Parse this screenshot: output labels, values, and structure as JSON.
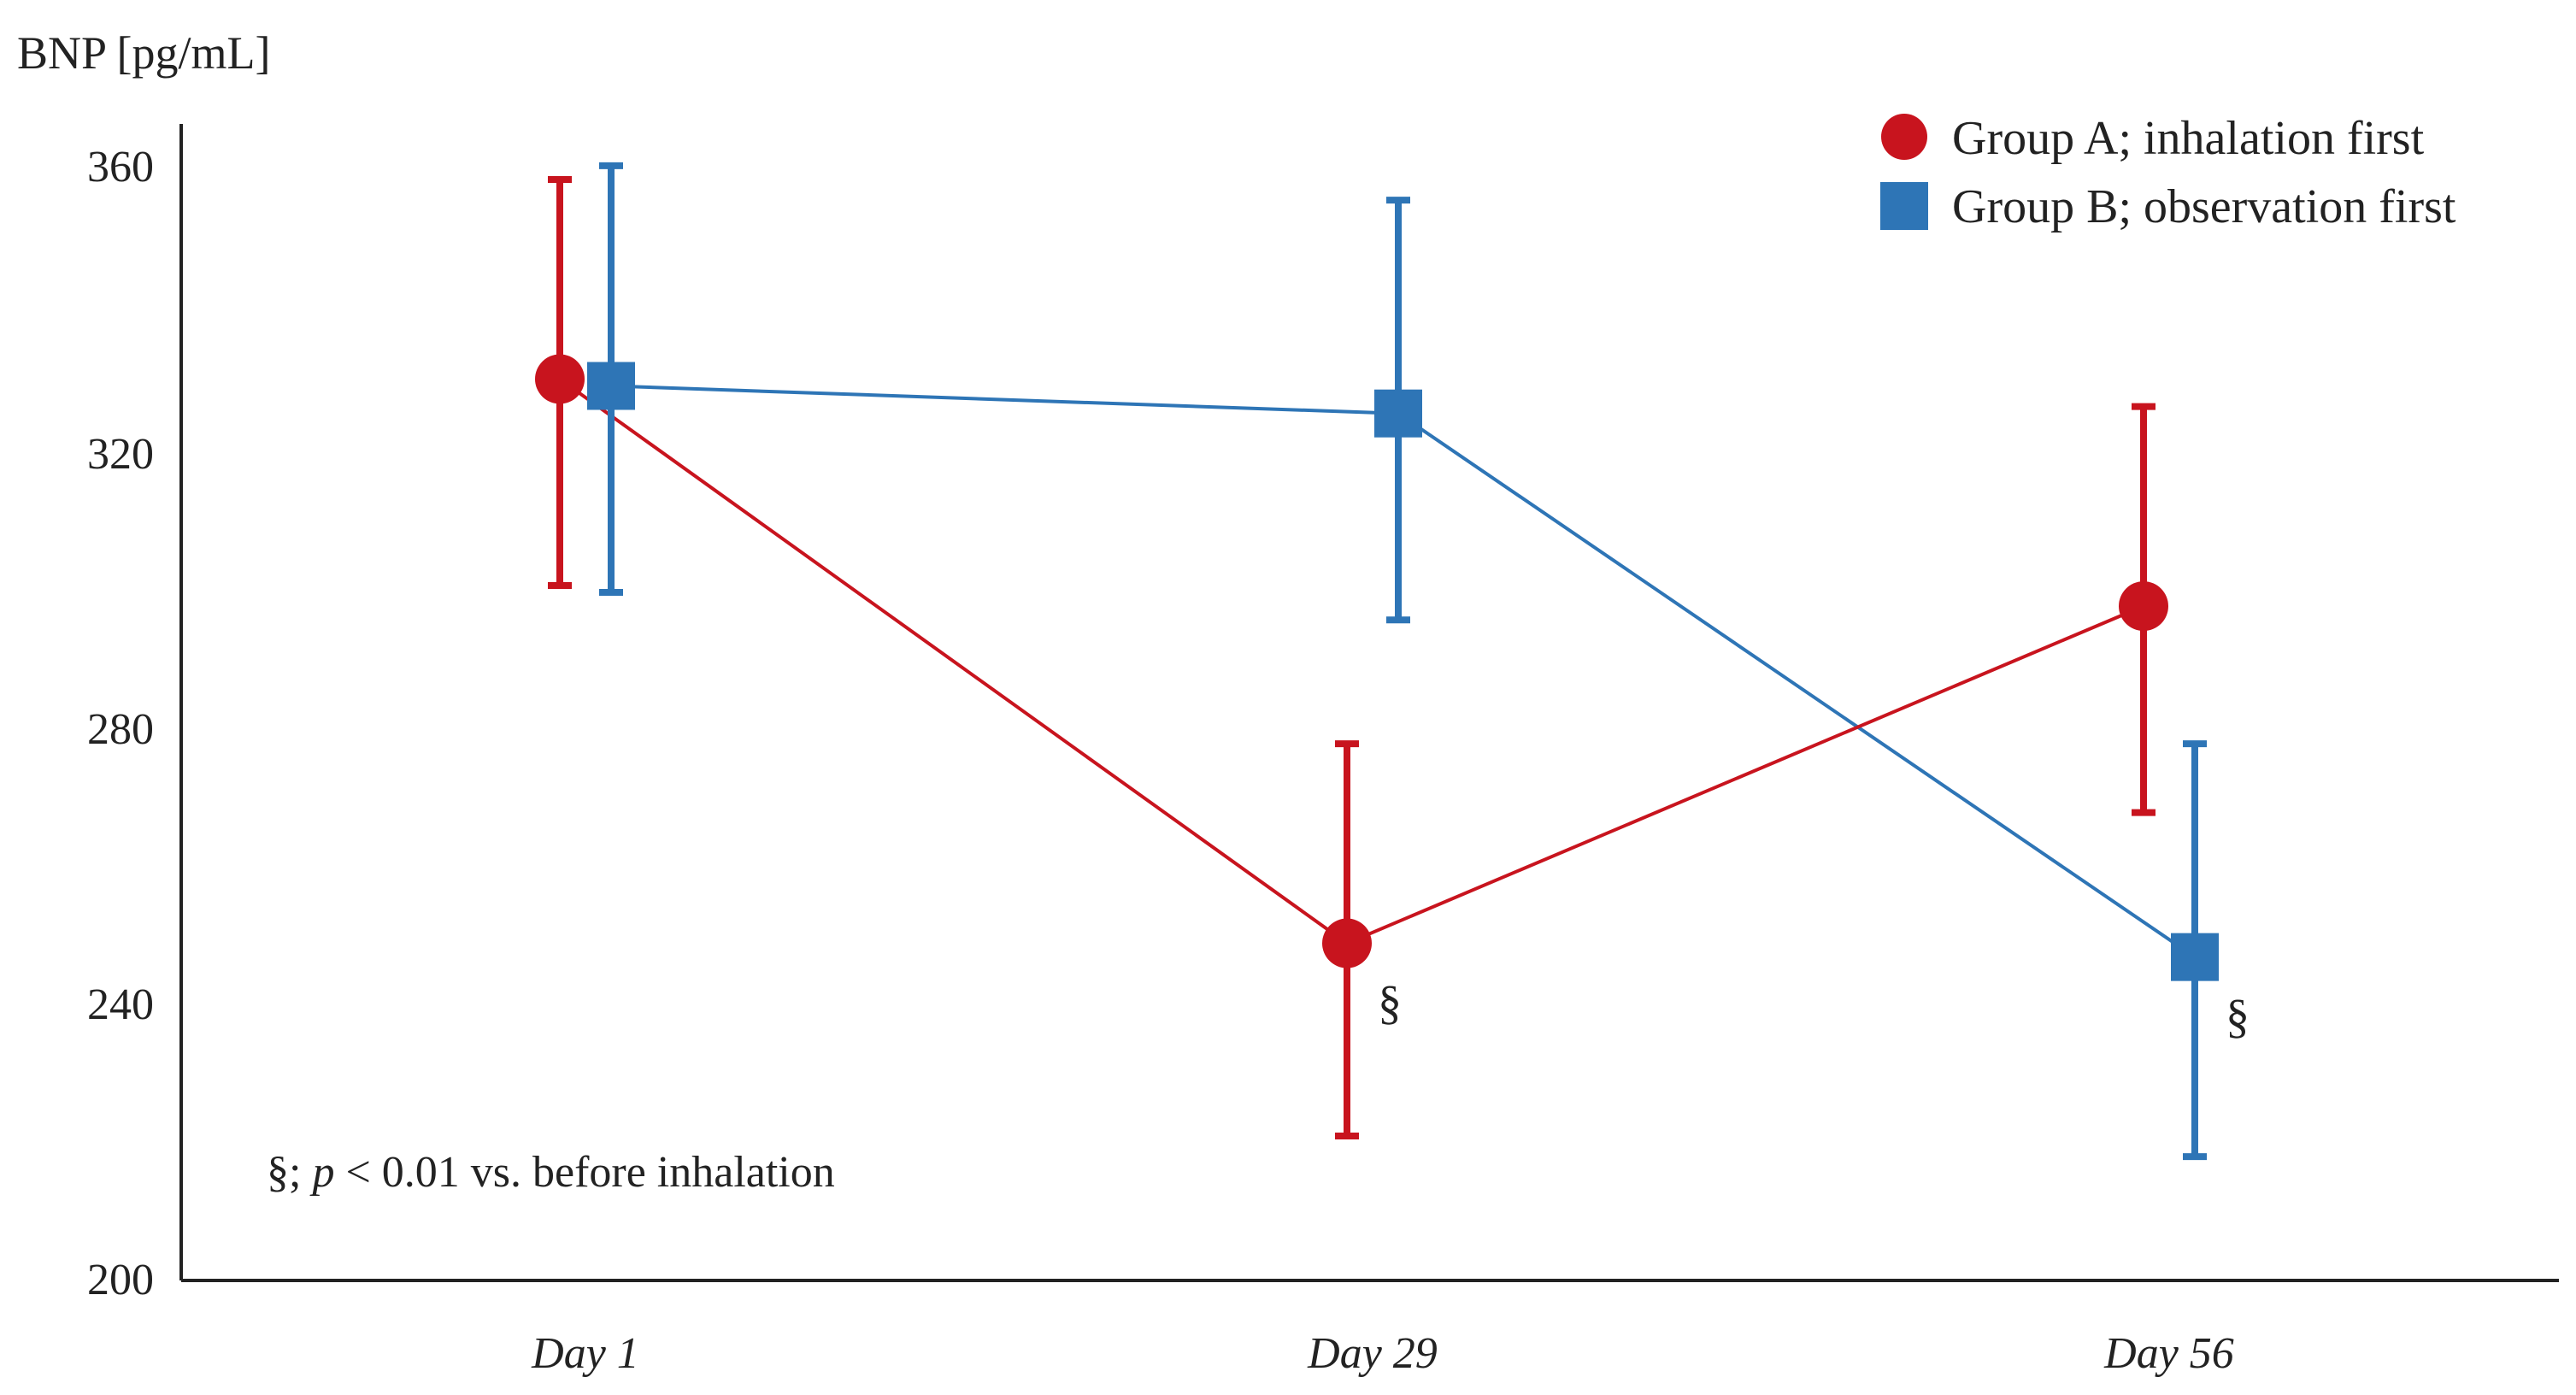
{
  "chart_data": {
    "type": "line",
    "title": "",
    "xlabel": "",
    "ylabel": "BNP [pg/mL]",
    "ylim": [
      200,
      360
    ],
    "yticks": [
      "200",
      "240",
      "280",
      "320",
      "360"
    ],
    "categories": [
      "Day 1",
      "Day 29",
      "Day 56"
    ],
    "grid": false,
    "legend_position": "top-right",
    "series": [
      {
        "name": "Group A; inhalation first",
        "marker": "circle",
        "color": "#c8141e",
        "values": [
          331,
          249,
          298
        ],
        "err_low": [
          301,
          221,
          268
        ],
        "err_high": [
          360,
          278,
          327
        ],
        "significance": [
          "",
          "§",
          ""
        ]
      },
      {
        "name": "Group B; observation first",
        "marker": "square",
        "color": "#2e75b6",
        "values": [
          330,
          326,
          247
        ],
        "err_low": [
          300,
          296,
          218
        ],
        "err_high": [
          362,
          357,
          278
        ],
        "significance": [
          "",
          "",
          "§"
        ]
      }
    ],
    "annotation": {
      "symbol": "§;",
      "p_label": "p",
      "text": " < 0.01 vs. before inhalation"
    }
  }
}
